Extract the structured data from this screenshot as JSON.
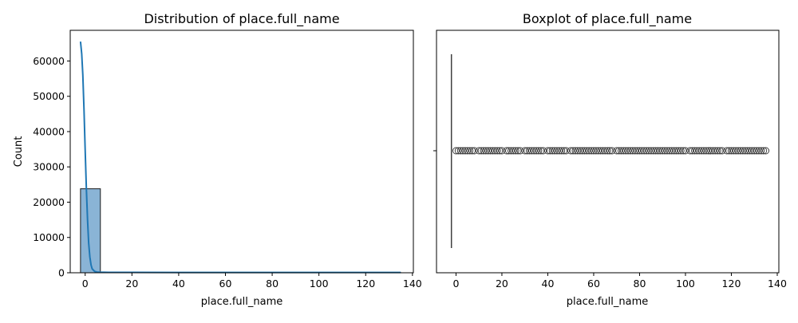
{
  "figure": {
    "background": "#ffffff"
  },
  "chart_data": [
    {
      "type": "bar",
      "title": "Distribution of place.full_name",
      "xlabel": "place.full_name",
      "ylabel": "Count",
      "xlim": [
        -6.4,
        140.4
      ],
      "ylim": [
        0,
        68700
      ],
      "xticks": [
        0,
        20,
        40,
        60,
        80,
        100,
        120,
        140
      ],
      "xtick_labels": [
        "0",
        "20",
        "40",
        "60",
        "80",
        "100",
        "120",
        "140"
      ],
      "yticks": [
        0,
        10000,
        20000,
        30000,
        40000,
        50000,
        60000
      ],
      "ytick_labels": [
        "0",
        "10000",
        "20000",
        "30000",
        "40000",
        "50000",
        "60000"
      ],
      "bins": [
        {
          "x0": -2,
          "x1": 6.5,
          "count": 23800
        },
        {
          "x0": 6.5,
          "x1": 15,
          "count": 110
        },
        {
          "x0": 15,
          "x1": 23.5,
          "count": 90
        },
        {
          "x0": 23.5,
          "x1": 32,
          "count": 80
        },
        {
          "x0": 32,
          "x1": 40.5,
          "count": 75
        },
        {
          "x0": 40.5,
          "x1": 49,
          "count": 70
        },
        {
          "x0": 49,
          "x1": 57.5,
          "count": 65
        },
        {
          "x0": 57.5,
          "x1": 66,
          "count": 70
        },
        {
          "x0": 66,
          "x1": 74.5,
          "count": 60
        },
        {
          "x0": 74.5,
          "x1": 83,
          "count": 60
        },
        {
          "x0": 83,
          "x1": 91.5,
          "count": 55
        },
        {
          "x0": 91.5,
          "x1": 100,
          "count": 55
        },
        {
          "x0": 100,
          "x1": 108.5,
          "count": 50
        },
        {
          "x0": 108.5,
          "x1": 117,
          "count": 50
        },
        {
          "x0": 117,
          "x1": 125.5,
          "count": 45
        },
        {
          "x0": 125.5,
          "x1": 135,
          "count": 45
        }
      ],
      "kde": {
        "x": [
          -2,
          -1.5,
          -1,
          -0.5,
          0,
          0.5,
          1,
          1.5,
          2,
          2.5,
          3,
          4,
          5,
          6,
          8,
          10,
          20,
          40,
          60,
          80,
          100,
          120,
          135
        ],
        "y": [
          65500,
          62000,
          56000,
          46000,
          35000,
          24000,
          15000,
          8500,
          4500,
          2200,
          1100,
          400,
          200,
          150,
          130,
          120,
          110,
          100,
          100,
          90,
          90,
          80,
          80
        ]
      },
      "colors": {
        "bar_fill": "#8ab4d6",
        "bar_edge": "#1a1a1a",
        "kde_line": "#1f77b4"
      }
    },
    {
      "type": "boxplot",
      "title": "Boxplot of place.full_name",
      "xlabel": "place.full_name",
      "xlim": [
        -8.5,
        140.7
      ],
      "xticks": [
        0,
        20,
        40,
        60,
        80,
        100,
        120,
        140
      ],
      "xtick_labels": [
        "0",
        "20",
        "40",
        "60",
        "80",
        "100",
        "120",
        "140"
      ],
      "box": {
        "q1": -2,
        "median": -2,
        "q3": -2,
        "whisker_low": -2,
        "whisker_high": -2
      },
      "outliers": [
        0,
        1,
        2,
        3,
        4,
        5,
        6,
        7,
        8,
        10,
        11,
        12,
        13,
        14,
        15,
        16,
        17,
        18,
        19,
        20,
        22,
        23,
        24,
        25,
        26,
        27,
        28,
        30,
        31,
        32,
        33,
        34,
        35,
        36,
        37,
        38,
        40,
        41,
        42,
        43,
        44,
        45,
        46,
        47,
        48,
        50,
        51,
        52,
        53,
        54,
        55,
        56,
        57,
        58,
        59,
        60,
        61,
        62,
        63,
        64,
        65,
        66,
        67,
        68,
        70,
        71,
        72,
        73,
        74,
        75,
        76,
        77,
        78,
        79,
        80,
        81,
        82,
        83,
        84,
        85,
        86,
        87,
        88,
        89,
        90,
        91,
        92,
        93,
        94,
        95,
        96,
        97,
        98,
        99,
        100,
        102,
        103,
        104,
        105,
        106,
        107,
        108,
        109,
        110,
        111,
        112,
        113,
        114,
        115,
        116,
        118,
        119,
        120,
        121,
        122,
        123,
        124,
        125,
        126,
        127,
        128,
        129,
        130,
        131,
        132,
        133,
        134,
        135
      ],
      "colors": {
        "line": "#3f3f3f",
        "outlier_edge": "#3f3f3f"
      }
    }
  ]
}
